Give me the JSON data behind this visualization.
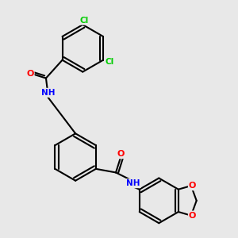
{
  "background_color": "#e8e8e8",
  "bond_color": "#000000",
  "bond_width": 1.5,
  "atom_colors": {
    "C": "#000000",
    "N": "#0000ff",
    "O": "#ff0000",
    "Cl": "#00cc00",
    "H": "#888888"
  },
  "title": "",
  "figsize": [
    3.0,
    3.0
  ],
  "dpi": 100
}
